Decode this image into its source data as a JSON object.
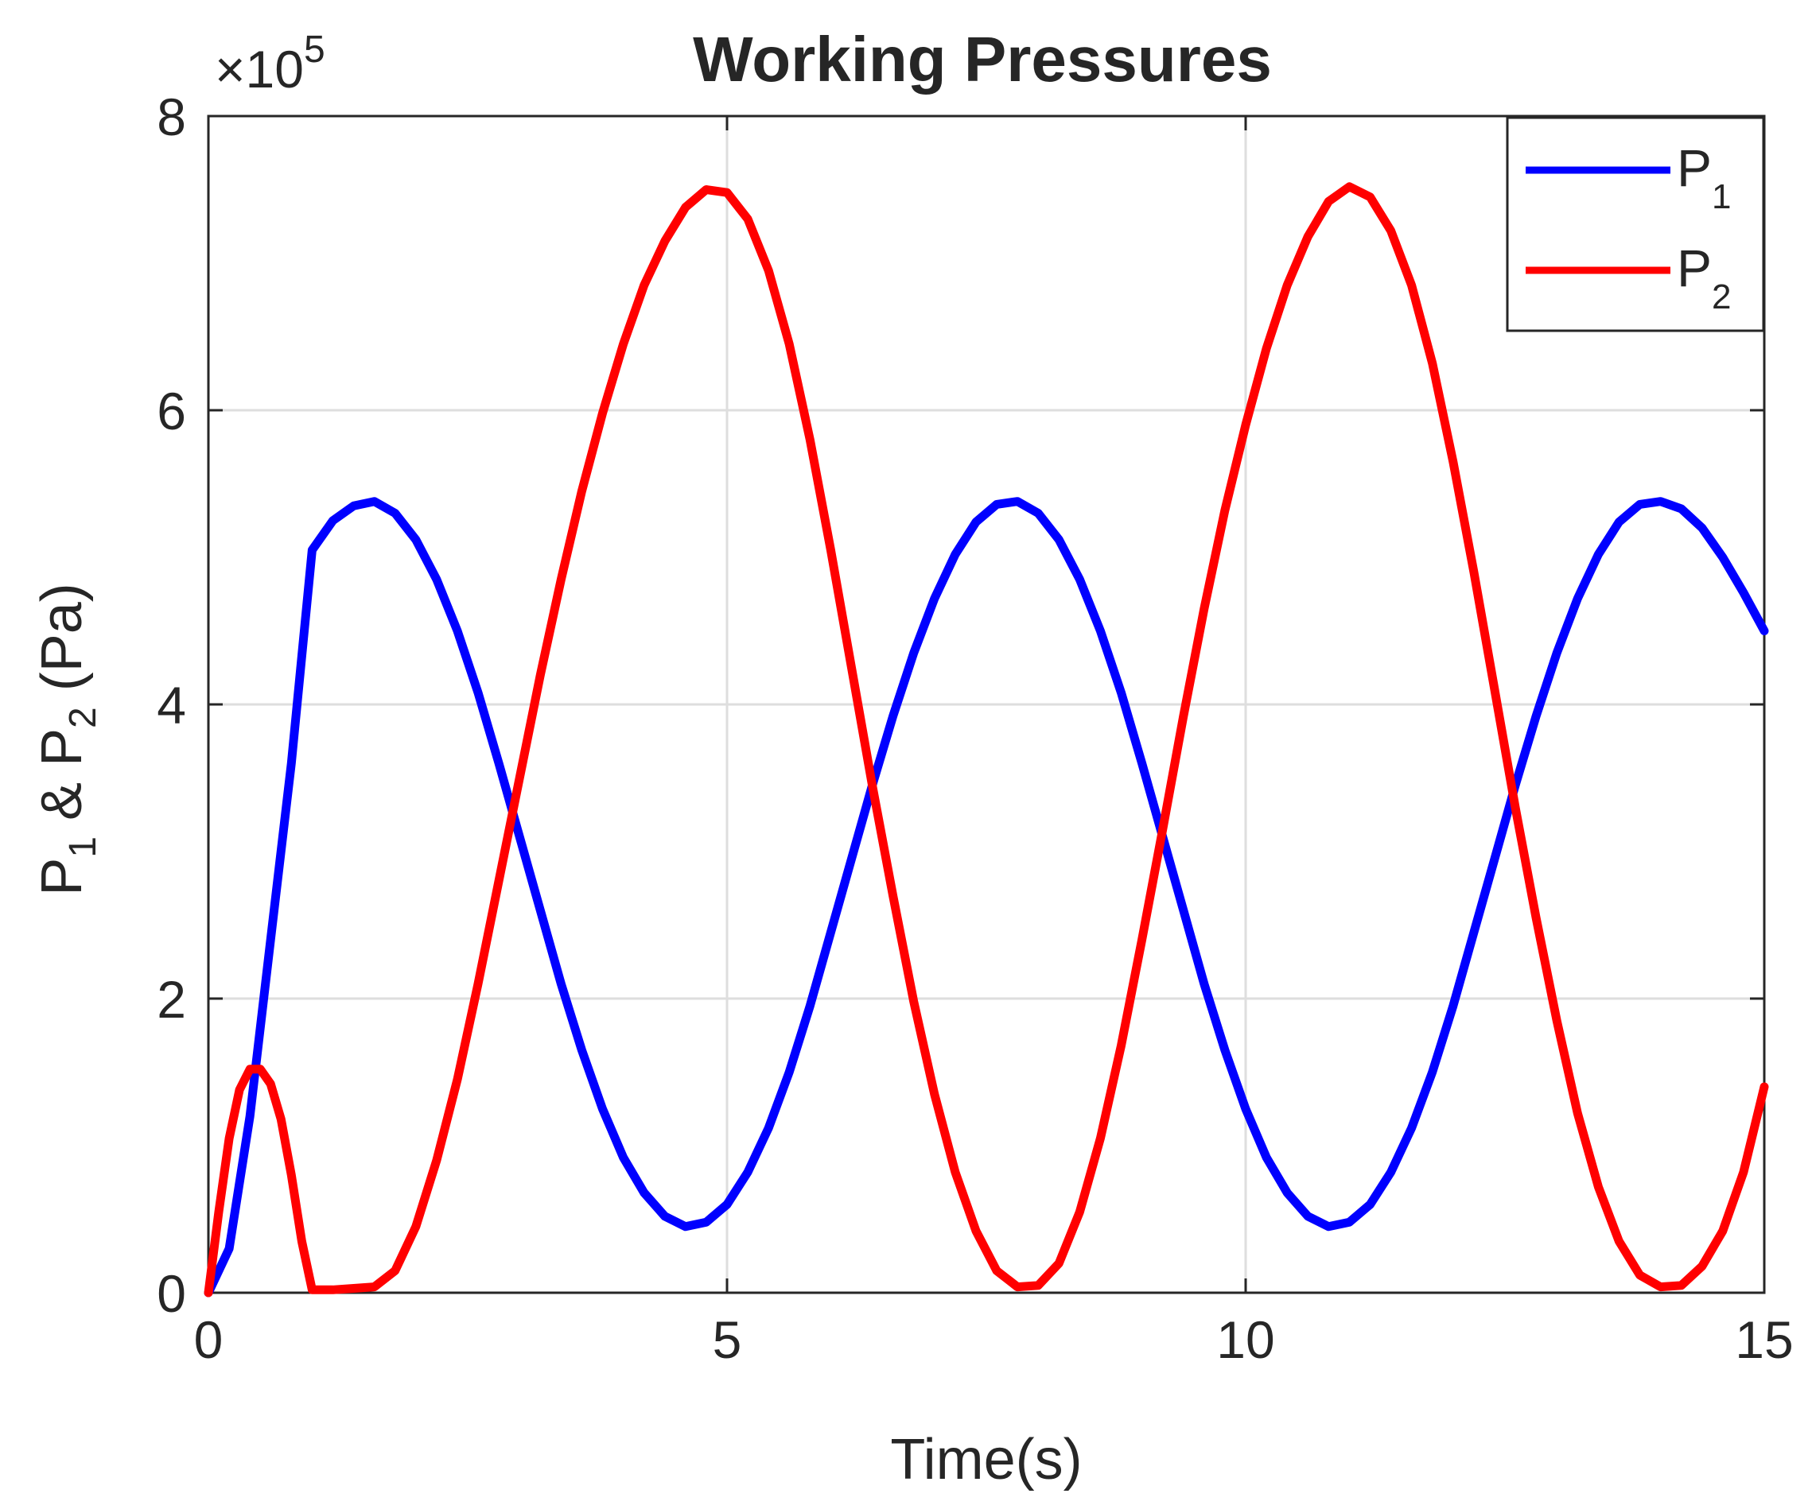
{
  "chart_data": {
    "type": "line",
    "title": "Working Pressures",
    "xlabel": "Time(s)",
    "ylabel": {
      "prefix": "P",
      "sub1": "1",
      "amp": " & P",
      "sub2": "2",
      "suffix": " (Pa)"
    },
    "y_exponent_label": {
      "base": "×10",
      "exp": "5"
    },
    "xlim": [
      0,
      15
    ],
    "ylim": [
      0,
      8
    ],
    "y_scale_factor": 100000,
    "xticks": [
      0,
      5,
      10,
      15
    ],
    "yticks": [
      0,
      2,
      4,
      6,
      8
    ],
    "grid": true,
    "legend_position": "top-right",
    "series": [
      {
        "name": "P1",
        "legend_main": "P",
        "legend_sub": "1",
        "color": "#0000ff",
        "points": [
          [
            0,
            0
          ],
          [
            0.2,
            0.3
          ],
          [
            0.4,
            1.2
          ],
          [
            0.6,
            2.4
          ],
          [
            0.8,
            3.6
          ],
          [
            1.0,
            5.05
          ],
          [
            1.2,
            5.25
          ],
          [
            1.4,
            5.35
          ],
          [
            1.6,
            5.38
          ],
          [
            1.8,
            5.3
          ],
          [
            2.0,
            5.12
          ],
          [
            2.2,
            4.85
          ],
          [
            2.4,
            4.5
          ],
          [
            2.6,
            4.08
          ],
          [
            2.8,
            3.6
          ],
          [
            3.0,
            3.1
          ],
          [
            3.2,
            2.6
          ],
          [
            3.4,
            2.1
          ],
          [
            3.6,
            1.65
          ],
          [
            3.8,
            1.25
          ],
          [
            4.0,
            0.92
          ],
          [
            4.2,
            0.68
          ],
          [
            4.4,
            0.52
          ],
          [
            4.6,
            0.45
          ],
          [
            4.8,
            0.48
          ],
          [
            5.0,
            0.6
          ],
          [
            5.2,
            0.82
          ],
          [
            5.4,
            1.12
          ],
          [
            5.6,
            1.5
          ],
          [
            5.8,
            1.95
          ],
          [
            6.0,
            2.45
          ],
          [
            6.2,
            2.95
          ],
          [
            6.4,
            3.45
          ],
          [
            6.6,
            3.92
          ],
          [
            6.8,
            4.35
          ],
          [
            7.0,
            4.72
          ],
          [
            7.2,
            5.02
          ],
          [
            7.4,
            5.24
          ],
          [
            7.6,
            5.36
          ],
          [
            7.8,
            5.38
          ],
          [
            8.0,
            5.3
          ],
          [
            8.2,
            5.12
          ],
          [
            8.4,
            4.85
          ],
          [
            8.6,
            4.5
          ],
          [
            8.8,
            4.08
          ],
          [
            9.0,
            3.6
          ],
          [
            9.2,
            3.1
          ],
          [
            9.4,
            2.6
          ],
          [
            9.6,
            2.1
          ],
          [
            9.8,
            1.65
          ],
          [
            10.0,
            1.25
          ],
          [
            10.2,
            0.92
          ],
          [
            10.4,
            0.68
          ],
          [
            10.6,
            0.52
          ],
          [
            10.8,
            0.45
          ],
          [
            11.0,
            0.48
          ],
          [
            11.2,
            0.6
          ],
          [
            11.4,
            0.82
          ],
          [
            11.6,
            1.12
          ],
          [
            11.8,
            1.5
          ],
          [
            12.0,
            1.95
          ],
          [
            12.2,
            2.45
          ],
          [
            12.4,
            2.95
          ],
          [
            12.6,
            3.45
          ],
          [
            12.8,
            3.92
          ],
          [
            13.0,
            4.35
          ],
          [
            13.2,
            4.72
          ],
          [
            13.4,
            5.02
          ],
          [
            13.6,
            5.24
          ],
          [
            13.8,
            5.36
          ],
          [
            14.0,
            5.38
          ],
          [
            14.2,
            5.33
          ],
          [
            14.4,
            5.2
          ],
          [
            14.6,
            5.0
          ],
          [
            14.8,
            4.76
          ],
          [
            15.0,
            4.5
          ]
        ]
      },
      {
        "name": "P2",
        "legend_main": "P",
        "legend_sub": "2",
        "color": "#ff0000",
        "points": [
          [
            0,
            0
          ],
          [
            0.1,
            0.55
          ],
          [
            0.2,
            1.05
          ],
          [
            0.3,
            1.38
          ],
          [
            0.4,
            1.52
          ],
          [
            0.5,
            1.52
          ],
          [
            0.6,
            1.42
          ],
          [
            0.7,
            1.18
          ],
          [
            0.8,
            0.8
          ],
          [
            0.9,
            0.35
          ],
          [
            1.0,
            0.02
          ],
          [
            1.2,
            0.02
          ],
          [
            1.4,
            0.03
          ],
          [
            1.6,
            0.04
          ],
          [
            1.8,
            0.15
          ],
          [
            2.0,
            0.45
          ],
          [
            2.2,
            0.9
          ],
          [
            2.4,
            1.45
          ],
          [
            2.6,
            2.1
          ],
          [
            2.8,
            2.8
          ],
          [
            3.0,
            3.5
          ],
          [
            3.2,
            4.2
          ],
          [
            3.4,
            4.85
          ],
          [
            3.6,
            5.45
          ],
          [
            3.8,
            5.98
          ],
          [
            4.0,
            6.45
          ],
          [
            4.2,
            6.85
          ],
          [
            4.4,
            7.15
          ],
          [
            4.6,
            7.38
          ],
          [
            4.8,
            7.5
          ],
          [
            5.0,
            7.48
          ],
          [
            5.2,
            7.3
          ],
          [
            5.4,
            6.95
          ],
          [
            5.6,
            6.45
          ],
          [
            5.8,
            5.8
          ],
          [
            6.0,
            5.05
          ],
          [
            6.2,
            4.25
          ],
          [
            6.4,
            3.45
          ],
          [
            6.6,
            2.7
          ],
          [
            6.8,
            1.98
          ],
          [
            7.0,
            1.35
          ],
          [
            7.2,
            0.82
          ],
          [
            7.4,
            0.42
          ],
          [
            7.6,
            0.15
          ],
          [
            7.8,
            0.04
          ],
          [
            8.0,
            0.05
          ],
          [
            8.2,
            0.2
          ],
          [
            8.4,
            0.55
          ],
          [
            8.6,
            1.05
          ],
          [
            8.8,
            1.68
          ],
          [
            9.0,
            2.4
          ],
          [
            9.2,
            3.15
          ],
          [
            9.4,
            3.92
          ],
          [
            9.6,
            4.65
          ],
          [
            9.8,
            5.32
          ],
          [
            10.0,
            5.9
          ],
          [
            10.2,
            6.42
          ],
          [
            10.4,
            6.85
          ],
          [
            10.6,
            7.18
          ],
          [
            10.8,
            7.42
          ],
          [
            11.0,
            7.52
          ],
          [
            11.2,
            7.45
          ],
          [
            11.4,
            7.22
          ],
          [
            11.6,
            6.85
          ],
          [
            11.8,
            6.32
          ],
          [
            12.0,
            5.65
          ],
          [
            12.2,
            4.9
          ],
          [
            12.4,
            4.1
          ],
          [
            12.6,
            3.3
          ],
          [
            12.8,
            2.55
          ],
          [
            13.0,
            1.85
          ],
          [
            13.2,
            1.22
          ],
          [
            13.4,
            0.72
          ],
          [
            13.6,
            0.35
          ],
          [
            13.8,
            0.12
          ],
          [
            14.0,
            0.04
          ],
          [
            14.2,
            0.05
          ],
          [
            14.4,
            0.18
          ],
          [
            14.6,
            0.42
          ],
          [
            14.8,
            0.82
          ],
          [
            15.0,
            1.4
          ]
        ]
      }
    ]
  }
}
